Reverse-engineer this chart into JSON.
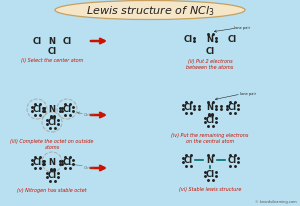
{
  "title": "Lewis structure of NCl$_3$",
  "bg_color": "#b8e0f0",
  "title_bg": "#f5e6c8",
  "title_edge": "#c8a060",
  "atom_color": "#222222",
  "red_color": "#cc1100",
  "teal_color": "#007070",
  "caption_color": "#cc1100",
  "gray_color": "#666666",
  "watermark": "© knordsilearning.com",
  "step_captions": [
    "(i) Select the center atom",
    "(ii) Put 2 electrons\nbetween the atoms",
    "(iii) Complete the octet on outside\natoms",
    "(iv) Put the remaining electrons\non the central atom",
    "(v) Nitrogen has stable octet",
    "(vi) Stable lewis structure"
  ]
}
